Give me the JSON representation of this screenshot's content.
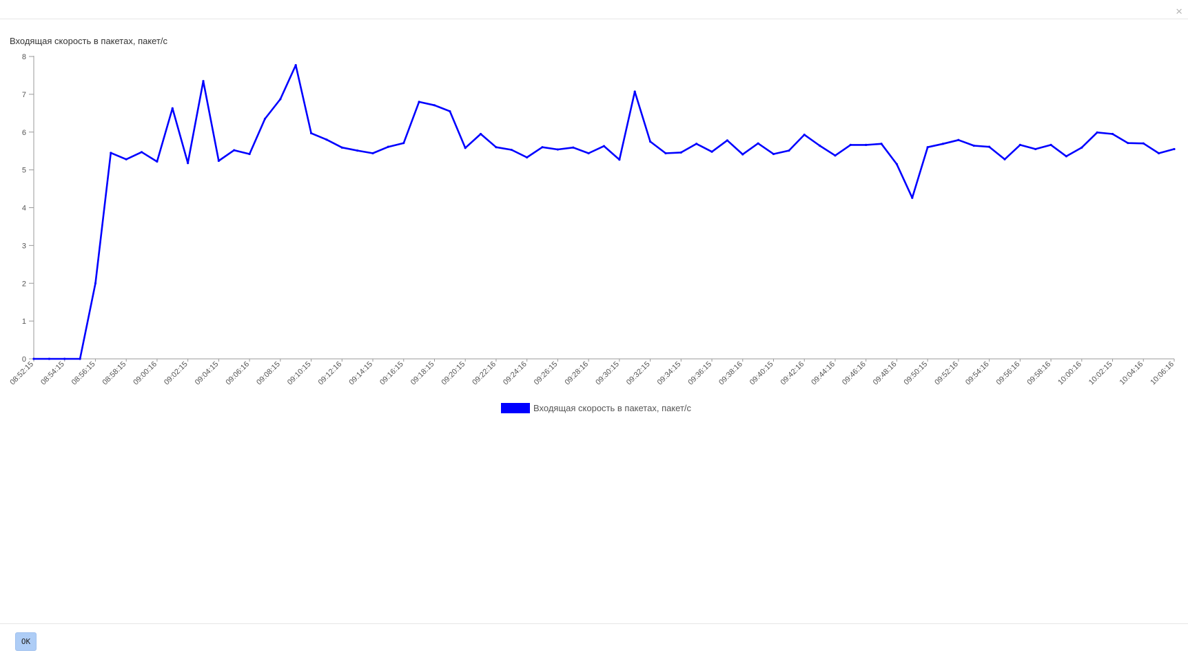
{
  "dialog": {
    "close_symbol": "×",
    "ok_label": "OK"
  },
  "colors": {
    "series": "#0000ff",
    "axis": "#999999",
    "text": "#333333"
  },
  "chart_data": {
    "type": "line",
    "title": "Входящая скорость в пакетах, пакет/с",
    "ylim": [
      0,
      8
    ],
    "yticks": [
      0,
      1,
      2,
      3,
      4,
      5,
      6,
      7,
      8
    ],
    "grid": false,
    "legend_position": "bottom-center",
    "x_tick_labels": [
      "08:52:15",
      "08:54:15",
      "08:56:15",
      "08:58:15",
      "09:00:16",
      "09:02:15",
      "09:04:15",
      "09:06:16",
      "09:08:15",
      "09:10:15",
      "09:12:16",
      "09:14:15",
      "09:16:15",
      "09:18:15",
      "09:20:15",
      "09:22:16",
      "09:24:16",
      "09:26:15",
      "09:28:16",
      "09:30:15",
      "09:32:15",
      "09:34:15",
      "09:36:15",
      "09:38:16",
      "09:40:15",
      "09:42:16",
      "09:44:16",
      "09:46:16",
      "09:48:16",
      "09:50:15",
      "09:52:16",
      "09:54:16",
      "09:56:16",
      "09:58:16",
      "10:00:16",
      "10:02:15",
      "10:04:16",
      "10:06:16"
    ],
    "series": [
      {
        "name": "Входящая скорость в пакетах, пакет/с",
        "values": [
          0,
          0,
          0,
          0,
          2.0,
          5.45,
          5.28,
          5.47,
          5.22,
          6.63,
          5.18,
          7.35,
          5.24,
          5.52,
          5.42,
          6.35,
          6.87,
          7.77,
          5.97,
          5.8,
          5.59,
          5.51,
          5.44,
          5.61,
          5.71,
          6.8,
          6.71,
          6.55,
          5.58,
          5.95,
          5.6,
          5.53,
          5.33,
          5.6,
          5.54,
          5.59,
          5.44,
          5.63,
          5.27,
          7.07,
          5.75,
          5.44,
          5.46,
          5.69,
          5.48,
          5.78,
          5.41,
          5.7,
          5.42,
          5.51,
          5.93,
          5.64,
          5.38,
          5.66,
          5.66,
          5.69,
          5.15,
          4.26,
          5.6,
          5.69,
          5.79,
          5.64,
          5.61,
          5.28,
          5.66,
          5.55,
          5.66,
          5.36,
          5.59,
          5.99,
          5.95,
          5.71,
          5.7,
          5.44,
          5.55
        ]
      }
    ]
  }
}
